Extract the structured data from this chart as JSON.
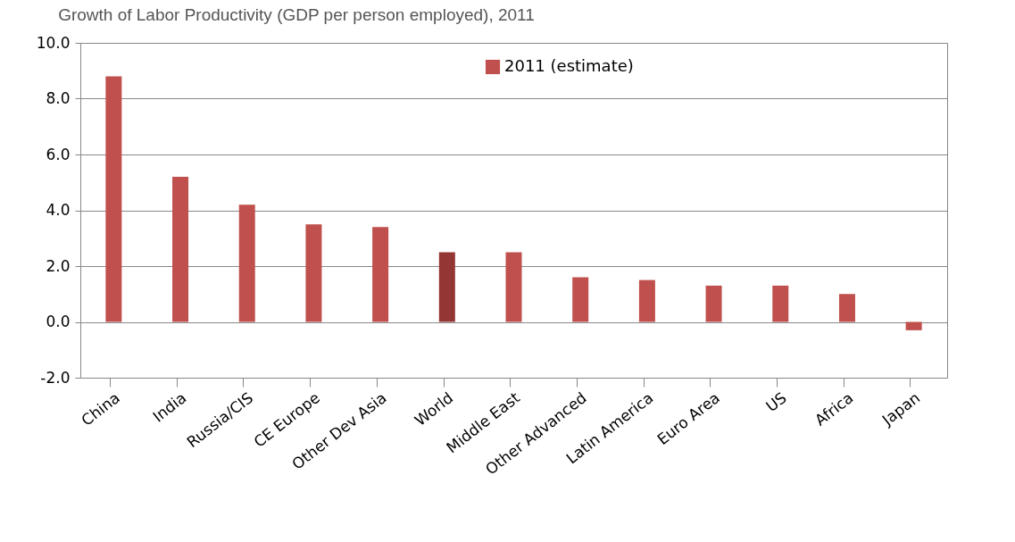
{
  "chart_data": {
    "type": "bar",
    "title": "Growth of Labor Productivity (GDP per person employed), 2011",
    "categories": [
      "China",
      "India",
      "Russia/CIS",
      "CE Europe",
      "Other Dev Asia",
      "World",
      "Middle East",
      "Other Advanced",
      "Latin America",
      "Euro Area",
      "US",
      "Africa",
      "Japan"
    ],
    "series": [
      {
        "name": "2011 (estimate)",
        "color": "#c0504d",
        "colors": [
          "#c0504d",
          "#c0504d",
          "#c0504d",
          "#c0504d",
          "#c0504d",
          "#943634",
          "#c0504d",
          "#c0504d",
          "#c0504d",
          "#c0504d",
          "#c0504d",
          "#c0504d",
          "#c0504d"
        ],
        "values": [
          8.8,
          5.2,
          4.2,
          3.5,
          3.4,
          2.5,
          2.5,
          1.6,
          1.5,
          1.3,
          1.3,
          1.0,
          -0.3
        ]
      }
    ],
    "ylim": [
      -2,
      10
    ],
    "yticks": [
      {
        "value": -2,
        "label": "-2.0"
      },
      {
        "value": 0,
        "label": "0.0"
      },
      {
        "value": 2,
        "label": "2.0"
      },
      {
        "value": 4,
        "label": "4.0"
      },
      {
        "value": 6,
        "label": "6.0"
      },
      {
        "value": 8,
        "label": "8.0"
      },
      {
        "value": 10,
        "label": "10.0"
      }
    ],
    "grid": "y",
    "legend": "top right"
  }
}
